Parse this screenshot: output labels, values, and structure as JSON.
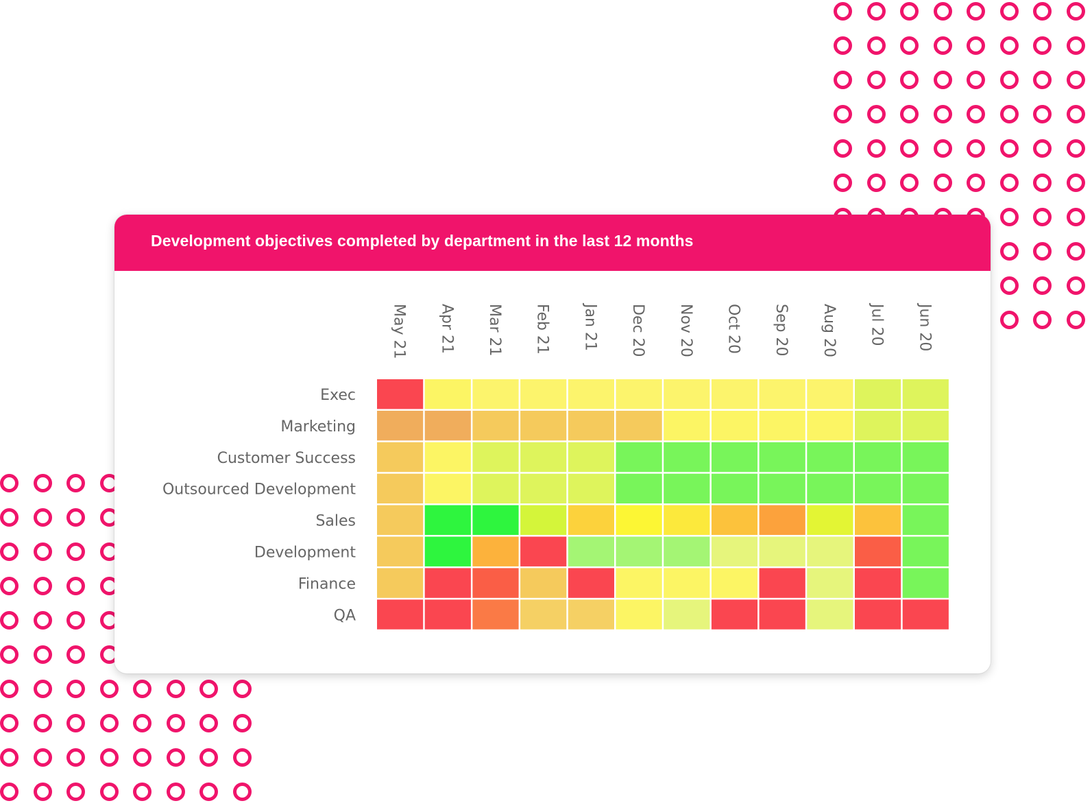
{
  "chart_data": {
    "type": "heatmap",
    "title": "Development objectives completed by department in the last 12 months",
    "x_categories": [
      "May 21",
      "Apr 21",
      "Mar 21",
      "Feb 21",
      "Jan 21",
      "Dec 20",
      "Nov 20",
      "Oct 20",
      "Sep 20",
      "Aug 20",
      "Jul 20",
      "Jun 20"
    ],
    "y_categories": [
      "Exec",
      "Marketing",
      "Customer Success",
      "Outsourced Development",
      "Sales",
      "Development",
      "Finance",
      "QA"
    ],
    "colors": [
      [
        "#fa4650",
        "#fcf564",
        "#fcf46c",
        "#fcf46c",
        "#fcf46c",
        "#fcf46c",
        "#fcf46c",
        "#fcf46c",
        "#fcf46c",
        "#fcf46c",
        "#def45c",
        "#def45c"
      ],
      [
        "#f0ad5c",
        "#f0ad5c",
        "#f5ca5c",
        "#f5ca5c",
        "#f5ca5c",
        "#f5ca5c",
        "#fcf564",
        "#fcf564",
        "#fcf564",
        "#fcf564",
        "#def45c",
        "#def45c"
      ],
      [
        "#f5ca5c",
        "#fcf564",
        "#def45c",
        "#def45c",
        "#def45c",
        "#78f55a",
        "#78f55a",
        "#78f55a",
        "#78f55a",
        "#78f55a",
        "#78f55a",
        "#78f55a"
      ],
      [
        "#f5ca5c",
        "#fcf564",
        "#def45c",
        "#def45c",
        "#def45c",
        "#78f55a",
        "#78f55a",
        "#78f55a",
        "#78f55a",
        "#78f55a",
        "#78f55a",
        "#78f55a"
      ],
      [
        "#f5ca5c",
        "#2ef53e",
        "#2ef53e",
        "#d4f53a",
        "#fcd23c",
        "#fcf634",
        "#fce93c",
        "#fcc23c",
        "#fca23c",
        "#e3f534",
        "#fcc23c",
        "#78f55a"
      ],
      [
        "#f5ca5c",
        "#2ef53e",
        "#fcb23c",
        "#fa4650",
        "#a4f574",
        "#a4f574",
        "#a4f574",
        "#e6f57c",
        "#e6f57c",
        "#e6f57c",
        "#fa5e46",
        "#78f55a"
      ],
      [
        "#f5ca5c",
        "#fa4650",
        "#fa5e46",
        "#f5ca5c",
        "#fa4650",
        "#fcf564",
        "#fcf564",
        "#fcf564",
        "#fa4650",
        "#e6f57c",
        "#fa4650",
        "#78f55a"
      ],
      [
        "#fa4650",
        "#fa4650",
        "#fa7a46",
        "#f5d064",
        "#f5d064",
        "#fcf564",
        "#e6f57c",
        "#fa4650",
        "#fa4650",
        "#e6f57c",
        "#fa4650",
        "#fa4650"
      ]
    ],
    "xlabel": "",
    "ylabel": "",
    "grid": true,
    "legend": "none"
  }
}
